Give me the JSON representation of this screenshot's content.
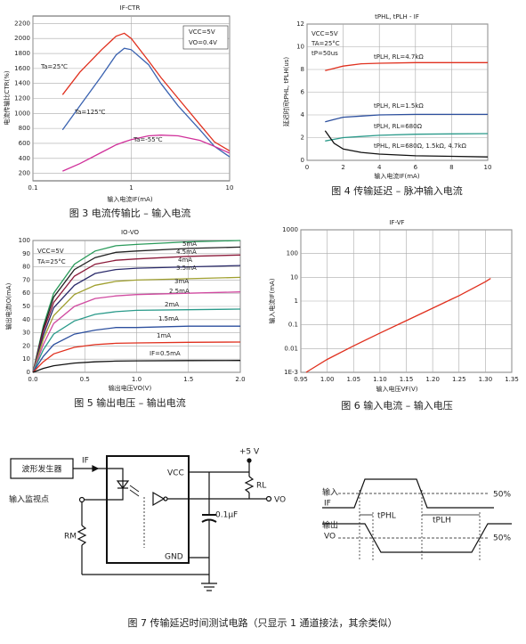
{
  "chart_data": [
    {
      "type": "line",
      "title": "IF-CTR",
      "xlabel": "输入电流IF(mA)",
      "ylabel": "电流传输比CTR(%)",
      "caption": "图 3 电流传输比 – 输入电流",
      "xlog": true,
      "grid": true,
      "xlim": [
        0.1,
        10
      ],
      "ylim": [
        100,
        2300
      ],
      "xticks": [
        0.1,
        1,
        10
      ],
      "yticks": [
        200,
        400,
        600,
        800,
        1000,
        1200,
        1400,
        1600,
        1800,
        2000,
        2200
      ],
      "annotations": [
        "VCC=5V",
        "VO=0.4V"
      ],
      "x": [
        0.2,
        0.3,
        0.5,
        0.7,
        0.85,
        1,
        1.5,
        2,
        3,
        5,
        7,
        10
      ],
      "series": [
        {
          "name": "Ta=25℃",
          "color": "#e0301e",
          "values": [
            1250,
            1550,
            1850,
            2030,
            2070,
            2000,
            1700,
            1480,
            1200,
            850,
            620,
            500
          ]
        },
        {
          "name": "Ta=125℃",
          "color": "#3a62b0",
          "values": [
            780,
            1100,
            1500,
            1780,
            1870,
            1850,
            1650,
            1400,
            1100,
            780,
            560,
            420
          ]
        },
        {
          "name": "Ta=-55℃",
          "color": "#d0309a",
          "values": [
            230,
            330,
            480,
            580,
            620,
            650,
            700,
            710,
            700,
            640,
            560,
            470
          ]
        }
      ]
    },
    {
      "type": "line",
      "title": "tPHL, tPLH - IF",
      "xlabel": "输入电流IF(mA)",
      "ylabel": "延迟时间tPHL, tPLH(us)",
      "caption": "图 4 传输延迟 – 脉冲输入电流",
      "grid": true,
      "xlim": [
        0,
        10
      ],
      "ylim": [
        0,
        12
      ],
      "xticks": [
        0,
        2,
        4,
        6,
        8,
        10
      ],
      "yticks": [
        0,
        2,
        4,
        6,
        8,
        10,
        12
      ],
      "annotations": [
        "VCC=5V",
        "TA=25°C",
        "tP=50us"
      ],
      "x": [
        1,
        1.5,
        2,
        3,
        4,
        6,
        8,
        10
      ],
      "series": [
        {
          "name": "tPLH, RL=4.7kΩ",
          "color": "#e0301e",
          "values": [
            7.9,
            8.1,
            8.3,
            8.5,
            8.55,
            8.6,
            8.6,
            8.6
          ]
        },
        {
          "name": "tPLH, RL=1.5kΩ",
          "color": "#2c4f9e",
          "values": [
            3.4,
            3.6,
            3.8,
            3.9,
            4.0,
            4.05,
            4.05,
            4.05
          ]
        },
        {
          "name": "tPLH, RL=680Ω",
          "color": "#2a9a8a",
          "values": [
            1.7,
            1.85,
            2.0,
            2.1,
            2.2,
            2.3,
            2.33,
            2.35
          ]
        },
        {
          "name": "tPHL, RL=680Ω, 1.5kΩ, 4.7kΩ",
          "color": "#111111",
          "values": [
            2.6,
            1.5,
            1.0,
            0.7,
            0.55,
            0.4,
            0.35,
            0.3
          ]
        }
      ]
    },
    {
      "type": "line",
      "title": "IO-VO",
      "xlabel": "输出电压VO(V)",
      "ylabel": "输出电流IO(mA)",
      "caption": "图 5 输出电压 – 输出电流",
      "grid": true,
      "xlim": [
        0,
        2
      ],
      "ylim": [
        0,
        100
      ],
      "xticks": [
        {
          "value": 0,
          "label": "0.0"
        },
        0.5,
        {
          "value": 1,
          "label": "1.0"
        },
        1.5,
        {
          "value": 2,
          "label": "2.0"
        }
      ],
      "yticks": [
        0,
        10,
        20,
        30,
        40,
        50,
        60,
        70,
        80,
        90,
        100
      ],
      "annotations": [
        "VCC=5V",
        "TA=25°C"
      ],
      "x": [
        0,
        0.1,
        0.2,
        0.4,
        0.6,
        0.8,
        1,
        1.5,
        2
      ],
      "series": [
        {
          "name": "5mA",
          "color": "#2a9a5a",
          "values": [
            0,
            35,
            60,
            82,
            92,
            96,
            97,
            99,
            100
          ]
        },
        {
          "name": "4.5mA",
          "color": "#222222",
          "values": [
            0,
            33,
            57,
            78,
            87,
            91,
            92,
            94,
            95
          ]
        },
        {
          "name": "4mA",
          "color": "#8b1a3a",
          "values": [
            0,
            31,
            53,
            73,
            82,
            85,
            86,
            88,
            89
          ]
        },
        {
          "name": "3.5mA",
          "color": "#2a2a6a",
          "values": [
            0,
            28,
            49,
            66,
            75,
            78,
            79,
            80,
            81
          ]
        },
        {
          "name": "3mA",
          "color": "#a0a030",
          "values": [
            0,
            25,
            43,
            59,
            66,
            69,
            70,
            71,
            72
          ]
        },
        {
          "name": "2.5mA",
          "color": "#d04aa0",
          "values": [
            0,
            21,
            37,
            50,
            56,
            58,
            59,
            60,
            61
          ]
        },
        {
          "name": "2mA",
          "color": "#2a9a8a",
          "values": [
            0,
            17,
            29,
            39,
            44,
            46,
            47,
            47.5,
            48
          ]
        },
        {
          "name": "1.5mA",
          "color": "#2c4f9e",
          "values": [
            0,
            12,
            21,
            29,
            32,
            34,
            34,
            35,
            35
          ]
        },
        {
          "name": "1mA",
          "color": "#e0301e",
          "values": [
            0,
            8,
            14,
            19,
            21,
            22,
            22.3,
            22.8,
            23
          ]
        },
        {
          "name": "IF=0.5mA",
          "color": "#111111",
          "values": [
            0,
            3,
            5,
            7,
            8,
            8.5,
            8.7,
            8.9,
            9
          ]
        }
      ]
    },
    {
      "type": "line",
      "title": "IF-VF",
      "xlabel": "输入电压VF(V)",
      "ylabel": "输入电流IF(mA)",
      "caption": "图 6 输入电流 – 输入电压",
      "ylog": true,
      "grid": true,
      "xlim": [
        0.95,
        1.35
      ],
      "ylim": [
        0.001,
        1000
      ],
      "xticks": [
        0.95,
        {
          "value": 1,
          "label": "1.00"
        },
        1.05,
        {
          "value": 1.1,
          "label": "1.10"
        },
        1.15,
        {
          "value": 1.2,
          "label": "1.20"
        },
        1.25,
        {
          "value": 1.3,
          "label": "1.30"
        },
        1.35
      ],
      "yticks": [
        {
          "value": 0.001,
          "label": "1E-3"
        },
        0.01,
        0.1,
        1,
        10,
        100,
        1000
      ],
      "x": [
        0.96,
        1,
        1.05,
        1.1,
        1.15,
        1.2,
        1.25,
        1.3,
        1.31
      ],
      "series": [
        {
          "color": "#e0301e",
          "values": [
            0.001,
            0.0035,
            0.013,
            0.045,
            0.15,
            0.5,
            1.7,
            6.5,
            9
          ]
        }
      ]
    }
  ],
  "figure7": {
    "caption": "图 7 传输延迟时间测试电路（只显示 1 通道接法，其余类似）",
    "generator": "波形发生器",
    "if_wire": "IF",
    "monitor": "输入监视点",
    "vcc": "VCC",
    "gnd": "GND",
    "supply": "+5 V",
    "rl": "RL",
    "vo": "VO",
    "cap": "0.1μF",
    "rm": "RM",
    "timing": {
      "input": "输入",
      "input_sig": "IF",
      "output": "输出",
      "output_sig": "VO",
      "tphl": "tPHL",
      "tplh": "tPLH",
      "level_in": "50%",
      "level_out": "50%"
    }
  }
}
